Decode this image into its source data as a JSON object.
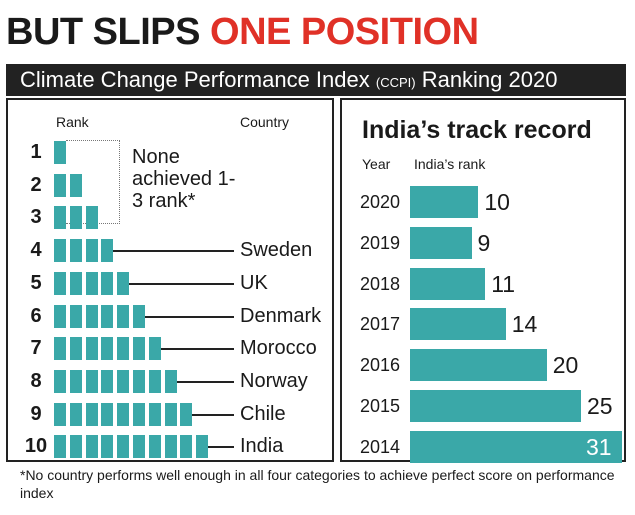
{
  "headline": {
    "part1": "BUT SLIPS ",
    "part2": "ONE POSITION"
  },
  "title": {
    "main": "Climate Change Performance Index ",
    "abbr": "(CCPI)",
    "tail": " Ranking 2020"
  },
  "left": {
    "rank_header": "Rank",
    "country_header": "Country",
    "note": "None achieved 1-3 rank*",
    "ranks": [
      "1",
      "2",
      "3",
      "4",
      "5",
      "6",
      "7",
      "8",
      "9",
      "10"
    ],
    "countries": [
      {
        "rank": 4,
        "name": "Sweden"
      },
      {
        "rank": 5,
        "name": "UK"
      },
      {
        "rank": 6,
        "name": "Denmark"
      },
      {
        "rank": 7,
        "name": "Morocco"
      },
      {
        "rank": 8,
        "name": "Norway"
      },
      {
        "rank": 9,
        "name": "Chile"
      },
      {
        "rank": 10,
        "name": "India"
      }
    ]
  },
  "right": {
    "title": "India’s track record",
    "year_header": "Year",
    "rank_header": "India’s rank"
  },
  "chart_data": [
    {
      "type": "bar",
      "title": "India’s track record",
      "xlabel": "Year",
      "ylabel": "India’s rank",
      "categories": [
        "2020",
        "2019",
        "2018",
        "2017",
        "2016",
        "2015",
        "2014"
      ],
      "values": [
        10,
        9,
        11,
        14,
        20,
        25,
        31
      ],
      "orientation": "horizontal"
    }
  ],
  "footnote": "*No country performs well enough in all four categories to achieve perfect score on performance index",
  "colors": {
    "accent": "#e03127",
    "bar": "#3aa8a8",
    "title_bg": "#222222"
  }
}
